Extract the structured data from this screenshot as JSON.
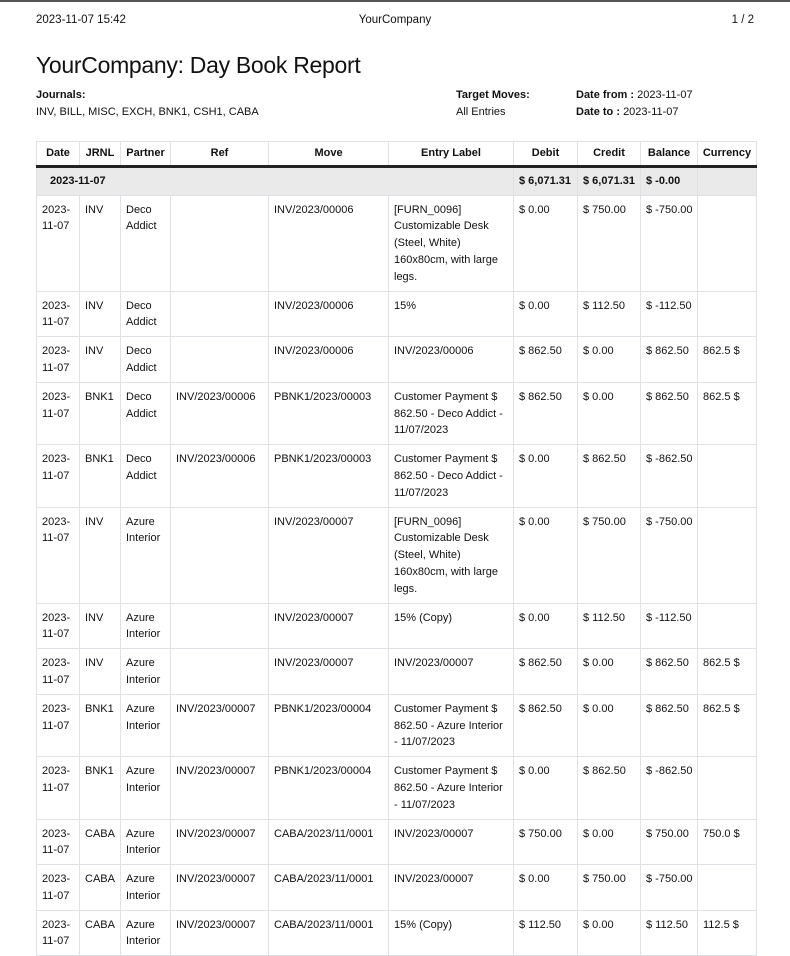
{
  "header": {
    "datetime": "2023-11-07 15:42",
    "company": "YourCompany",
    "page": "1 / 2"
  },
  "title": "YourCompany: Day Book Report",
  "journals": {
    "label": "Journals:",
    "value": "INV, BILL, MISC, EXCH, BNK1, CSH1, CABA"
  },
  "target_moves": {
    "label": "Target Moves:",
    "value": "All Entries"
  },
  "date_from": {
    "label": "Date from :",
    "value": "2023-11-07"
  },
  "date_to": {
    "label": "Date to :",
    "value": "2023-11-07"
  },
  "columns": [
    "Date",
    "JRNL",
    "Partner",
    "Ref",
    "Move",
    "Entry Label",
    "Debit",
    "Credit",
    "Balance",
    "Currency"
  ],
  "group": {
    "date": "2023-11-07",
    "debit": "$ 6,071.31",
    "credit": "$ 6,071.31",
    "balance": "$ -0.00"
  },
  "rows": [
    [
      "2023-11-07",
      "INV",
      "Deco Addict",
      "",
      "INV/2023/00006",
      "[FURN_0096] Customizable Desk (Steel, White) 160x80cm, with large legs.",
      "$ 0.00",
      "$ 750.00",
      "$ -750.00",
      ""
    ],
    [
      "2023-11-07",
      "INV",
      "Deco Addict",
      "",
      "INV/2023/00006",
      "15%",
      "$ 0.00",
      "$ 112.50",
      "$ -112.50",
      ""
    ],
    [
      "2023-11-07",
      "INV",
      "Deco Addict",
      "",
      "INV/2023/00006",
      "INV/2023/00006",
      "$ 862.50",
      "$ 0.00",
      "$ 862.50",
      "862.5 $"
    ],
    [
      "2023-11-07",
      "BNK1",
      "Deco Addict",
      "INV/2023/00006",
      "PBNK1/2023/00003",
      "Customer Payment $ 862.50 - Deco Addict - 11/07/2023",
      "$ 862.50",
      "$ 0.00",
      "$ 862.50",
      "862.5 $"
    ],
    [
      "2023-11-07",
      "BNK1",
      "Deco Addict",
      "INV/2023/00006",
      "PBNK1/2023/00003",
      "Customer Payment $ 862.50 - Deco Addict - 11/07/2023",
      "$ 0.00",
      "$ 862.50",
      "$ -862.50",
      ""
    ],
    [
      "2023-11-07",
      "INV",
      "Azure Interior",
      "",
      "INV/2023/00007",
      "[FURN_0096] Customizable Desk (Steel, White) 160x80cm, with large legs.",
      "$ 0.00",
      "$ 750.00",
      "$ -750.00",
      ""
    ],
    [
      "2023-11-07",
      "INV",
      "Azure Interior",
      "",
      "INV/2023/00007",
      "15% (Copy)",
      "$ 0.00",
      "$ 112.50",
      "$ -112.50",
      ""
    ],
    [
      "2023-11-07",
      "INV",
      "Azure Interior",
      "",
      "INV/2023/00007",
      "INV/2023/00007",
      "$ 862.50",
      "$ 0.00",
      "$ 862.50",
      "862.5 $"
    ],
    [
      "2023-11-07",
      "BNK1",
      "Azure Interior",
      "INV/2023/00007",
      "PBNK1/2023/00004",
      "Customer Payment $ 862.50 - Azure Interior - 11/07/2023",
      "$ 862.50",
      "$ 0.00",
      "$ 862.50",
      "862.5 $"
    ],
    [
      "2023-11-07",
      "BNK1",
      "Azure Interior",
      "INV/2023/00007",
      "PBNK1/2023/00004",
      "Customer Payment $ 862.50 - Azure Interior - 11/07/2023",
      "$ 0.00",
      "$ 862.50",
      "$ -862.50",
      ""
    ],
    [
      "2023-11-07",
      "CABA",
      "Azure Interior",
      "INV/2023/00007",
      "CABA/2023/11/0001",
      "INV/2023/00007",
      "$ 750.00",
      "$ 0.00",
      "$ 750.00",
      "750.0 $"
    ],
    [
      "2023-11-07",
      "CABA",
      "Azure Interior",
      "INV/2023/00007",
      "CABA/2023/11/0001",
      "INV/2023/00007",
      "$ 0.00",
      "$ 750.00",
      "$ -750.00",
      ""
    ],
    [
      "2023-11-07",
      "CABA",
      "Azure Interior",
      "INV/2023/00007",
      "CABA/2023/11/0001",
      "15% (Copy)",
      "$ 112.50",
      "$ 0.00",
      "$ 112.50",
      "112.5 $"
    ]
  ]
}
